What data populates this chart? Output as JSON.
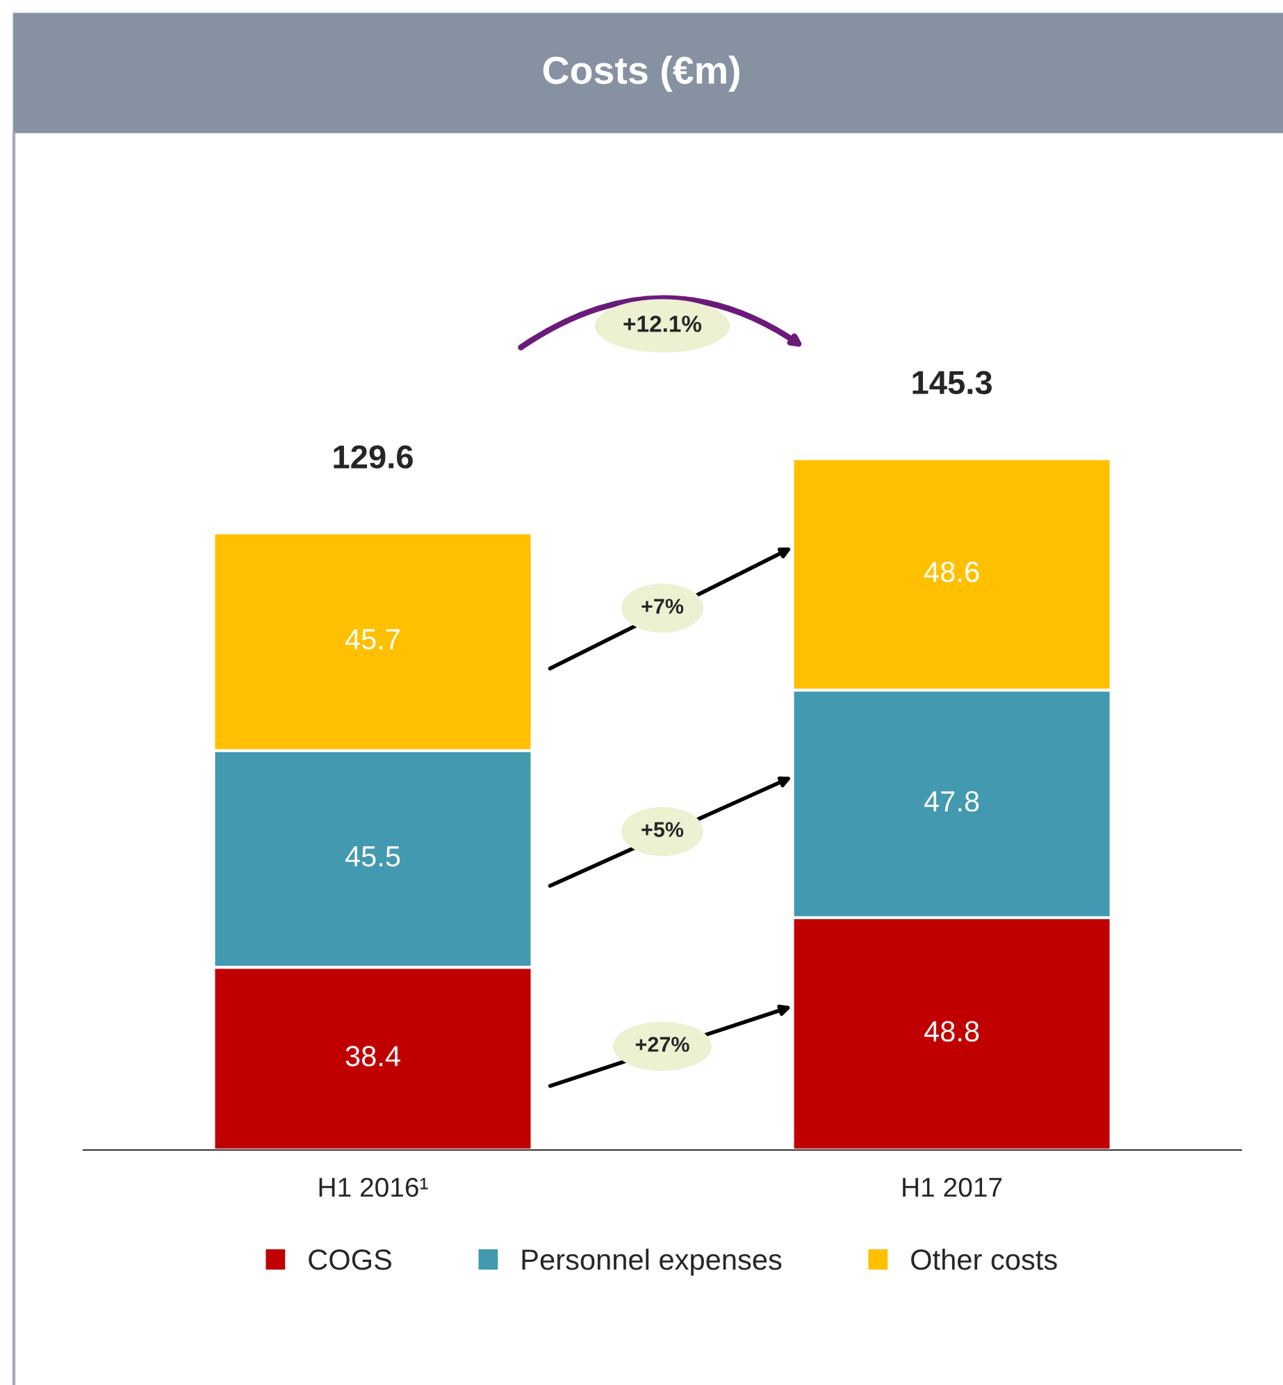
{
  "chart_data": {
    "type": "bar",
    "title": "Costs (€m)",
    "categories": [
      "H1 2016¹",
      "H1 2017"
    ],
    "stacked": true,
    "data_labels": true,
    "legend": "bottom",
    "grid": false,
    "series": [
      {
        "name": "COGS",
        "color": "#c00000",
        "values": [
          38.4,
          48.8
        ]
      },
      {
        "name": "Personnel expenses",
        "color": "#4299b0",
        "values": [
          45.5,
          47.8
        ]
      },
      {
        "name": "Other costs",
        "color": "#ffc000",
        "values": [
          45.7,
          48.6
        ]
      }
    ],
    "totals": [
      "129.6",
      "145.3"
    ],
    "annotations": [
      "+12.1%",
      "+7%",
      "+5%",
      "+27%"
    ]
  }
}
